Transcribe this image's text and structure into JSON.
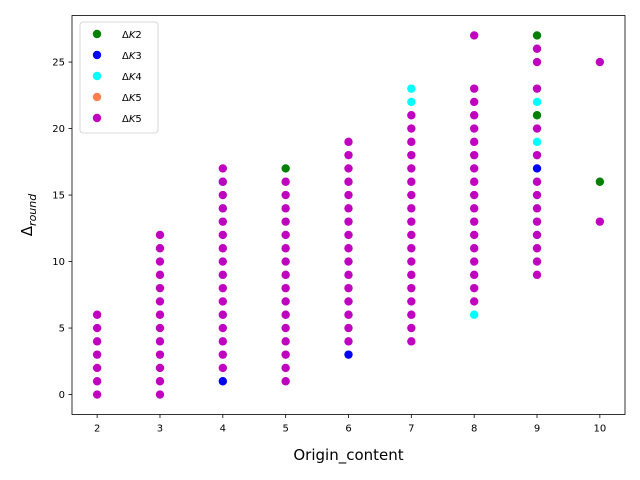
{
  "chart_data": {
    "type": "scatter",
    "xlabel": "Origin_content",
    "ylabel_main": "Δ",
    "ylabel_sub": "round",
    "xlim": [
      1.6,
      10.4
    ],
    "ylim": [
      -1.5,
      28.5
    ],
    "xticks": [
      2,
      3,
      4,
      5,
      6,
      7,
      8,
      9,
      10
    ],
    "yticks": [
      0,
      5,
      10,
      15,
      20,
      25
    ],
    "grid": false,
    "legend_position": "upper-left",
    "series": [
      {
        "name_main": "Δ",
        "name_var": "K",
        "name_num": "2",
        "color": "#008000",
        "points": [
          [
            5,
            17
          ],
          [
            9,
            27
          ],
          [
            9,
            21
          ],
          [
            10,
            16
          ]
        ]
      },
      {
        "name_main": "Δ",
        "name_var": "K",
        "name_num": "3",
        "color": "#0000ff",
        "points": [
          [
            4,
            1
          ],
          [
            6,
            3
          ],
          [
            9,
            17
          ]
        ]
      },
      {
        "name_main": "Δ",
        "name_var": "K",
        "name_num": "4",
        "color": "#00ffff",
        "points": [
          [
            4,
            14
          ],
          [
            4,
            16
          ],
          [
            7,
            22
          ],
          [
            7,
            23
          ],
          [
            8,
            6
          ],
          [
            9,
            12
          ],
          [
            9,
            19
          ],
          [
            9,
            22
          ]
        ]
      },
      {
        "name_main": "Δ",
        "name_var": "K",
        "name_num": "5",
        "color": "#ff7f50",
        "points": []
      },
      {
        "name_main": "Δ",
        "name_var": "K",
        "name_num": "5",
        "color": "#bf00bf",
        "points": [
          [
            2,
            0
          ],
          [
            2,
            1
          ],
          [
            2,
            2
          ],
          [
            2,
            3
          ],
          [
            2,
            4
          ],
          [
            2,
            5
          ],
          [
            2,
            6
          ],
          [
            3,
            0
          ],
          [
            3,
            1
          ],
          [
            3,
            2
          ],
          [
            3,
            3
          ],
          [
            3,
            4
          ],
          [
            3,
            5
          ],
          [
            3,
            6
          ],
          [
            3,
            7
          ],
          [
            3,
            8
          ],
          [
            3,
            9
          ],
          [
            3,
            10
          ],
          [
            3,
            11
          ],
          [
            3,
            12
          ],
          [
            4,
            2
          ],
          [
            4,
            3
          ],
          [
            4,
            4
          ],
          [
            4,
            5
          ],
          [
            4,
            6
          ],
          [
            4,
            7
          ],
          [
            4,
            8
          ],
          [
            4,
            9
          ],
          [
            4,
            10
          ],
          [
            4,
            11
          ],
          [
            4,
            12
          ],
          [
            4,
            13
          ],
          [
            4,
            14
          ],
          [
            4,
            15
          ],
          [
            4,
            16
          ],
          [
            4,
            17
          ],
          [
            5,
            1
          ],
          [
            5,
            2
          ],
          [
            5,
            3
          ],
          [
            5,
            4
          ],
          [
            5,
            5
          ],
          [
            5,
            6
          ],
          [
            5,
            7
          ],
          [
            5,
            8
          ],
          [
            5,
            9
          ],
          [
            5,
            10
          ],
          [
            5,
            11
          ],
          [
            5,
            12
          ],
          [
            5,
            13
          ],
          [
            5,
            14
          ],
          [
            5,
            15
          ],
          [
            5,
            16
          ],
          [
            6,
            4
          ],
          [
            6,
            5
          ],
          [
            6,
            6
          ],
          [
            6,
            7
          ],
          [
            6,
            8
          ],
          [
            6,
            9
          ],
          [
            6,
            10
          ],
          [
            6,
            11
          ],
          [
            6,
            12
          ],
          [
            6,
            13
          ],
          [
            6,
            14
          ],
          [
            6,
            15
          ],
          [
            6,
            16
          ],
          [
            6,
            17
          ],
          [
            6,
            18
          ],
          [
            6,
            19
          ],
          [
            7,
            4
          ],
          [
            7,
            5
          ],
          [
            7,
            6
          ],
          [
            7,
            7
          ],
          [
            7,
            8
          ],
          [
            7,
            9
          ],
          [
            7,
            10
          ],
          [
            7,
            11
          ],
          [
            7,
            12
          ],
          [
            7,
            13
          ],
          [
            7,
            14
          ],
          [
            7,
            15
          ],
          [
            7,
            16
          ],
          [
            7,
            17
          ],
          [
            7,
            18
          ],
          [
            7,
            19
          ],
          [
            7,
            20
          ],
          [
            7,
            21
          ],
          [
            8,
            7
          ],
          [
            8,
            8
          ],
          [
            8,
            9
          ],
          [
            8,
            10
          ],
          [
            8,
            11
          ],
          [
            8,
            12
          ],
          [
            8,
            13
          ],
          [
            8,
            14
          ],
          [
            8,
            15
          ],
          [
            8,
            16
          ],
          [
            8,
            17
          ],
          [
            8,
            18
          ],
          [
            8,
            19
          ],
          [
            8,
            20
          ],
          [
            8,
            21
          ],
          [
            8,
            22
          ],
          [
            8,
            23
          ],
          [
            8,
            27
          ],
          [
            9,
            9
          ],
          [
            9,
            10
          ],
          [
            9,
            11
          ],
          [
            9,
            12
          ],
          [
            9,
            13
          ],
          [
            9,
            14
          ],
          [
            9,
            15
          ],
          [
            9,
            16
          ],
          [
            9,
            18
          ],
          [
            9,
            20
          ],
          [
            9,
            23
          ],
          [
            9,
            25
          ],
          [
            9,
            26
          ],
          [
            10,
            13
          ],
          [
            10,
            25
          ]
        ]
      }
    ]
  }
}
